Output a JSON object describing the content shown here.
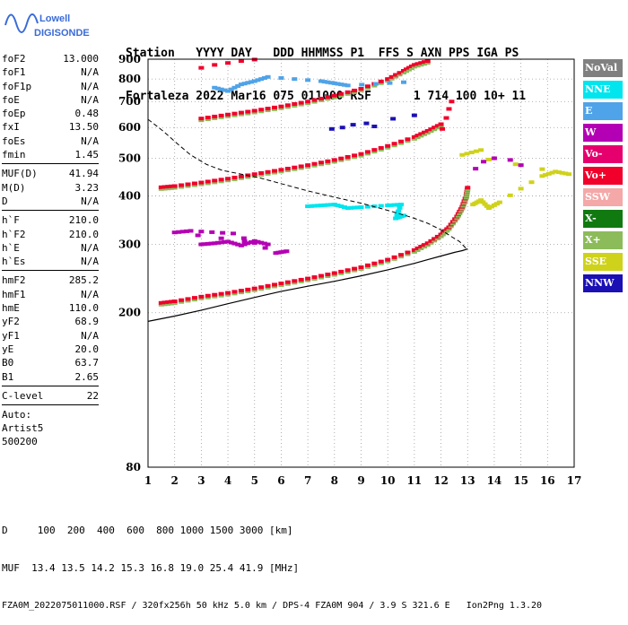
{
  "logo": {
    "line1": "Lowell",
    "line2": "DIGISONDE",
    "icon": "digisonde-waveform-logo"
  },
  "header": {
    "columns": "Station   YYYY DAY   DDD HHMMSS P1  FFS S AXN PPS IGA PS",
    "values": "Fortaleza 2022 Mar16 075 011000 RSF      1 714 100 10+ 11"
  },
  "params": {
    "group1": [
      {
        "name": "foF2",
        "value": "13.000"
      },
      {
        "name": "foF1",
        "value": "N/A"
      },
      {
        "name": "foF1p",
        "value": "N/A"
      },
      {
        "name": "foE",
        "value": "N/A"
      },
      {
        "name": "foEp",
        "value": "0.48"
      },
      {
        "name": "fxI",
        "value": "13.50"
      },
      {
        "name": "foEs",
        "value": "N/A"
      },
      {
        "name": "fmin",
        "value": "1.45"
      }
    ],
    "group2": [
      {
        "name": "MUF(D)",
        "value": "41.94"
      },
      {
        "name": "M(D)",
        "value": "3.23"
      },
      {
        "name": "D",
        "value": "N/A"
      }
    ],
    "group3": [
      {
        "name": "h`F",
        "value": "210.0"
      },
      {
        "name": "h`F2",
        "value": "210.0"
      },
      {
        "name": "h`E",
        "value": "N/A"
      },
      {
        "name": "h`Es",
        "value": "N/A"
      }
    ],
    "group4": [
      {
        "name": "hmF2",
        "value": "285.2"
      },
      {
        "name": "hmF1",
        "value": "N/A"
      },
      {
        "name": "hmE",
        "value": "110.0"
      },
      {
        "name": "yF2",
        "value": "68.9"
      },
      {
        "name": "yF1",
        "value": "N/A"
      },
      {
        "name": "yE",
        "value": "20.0"
      },
      {
        "name": "B0",
        "value": "63.7"
      },
      {
        "name": "B1",
        "value": "2.65"
      }
    ],
    "group5": [
      {
        "name": "C-level",
        "value": "22"
      }
    ],
    "auto": [
      "Auto:",
      "Artist5",
      "500200"
    ]
  },
  "legend": [
    {
      "label": "NoVal",
      "color": "#808080"
    },
    {
      "label": "NNE",
      "color": "#00e5ee"
    },
    {
      "label": "E",
      "color": "#4fa3e8"
    },
    {
      "label": "W",
      "color": "#b400b4"
    },
    {
      "label": "Vo-",
      "color": "#e6006e"
    },
    {
      "label": "Vo+",
      "color": "#f0002a"
    },
    {
      "label": "SSW",
      "color": "#f4a8a8"
    },
    {
      "label": "X-",
      "color": "#107a10"
    },
    {
      "label": "X+",
      "color": "#8cbb5a"
    },
    {
      "label": "SSE",
      "color": "#cfd21a"
    },
    {
      "label": "NNW",
      "color": "#1a10b4"
    }
  ],
  "footer": {
    "line1": "D     100  200  400  600  800 1000 1500 3000 [km]",
    "line2": "MUF  13.4 13.5 14.2 15.3 16.8 19.0 25.4 41.9 [MHz]",
    "line3": "FZA0M_2022075011000.RSF / 320fx256h 50 kHz 5.0 km / DPS-4 FZA0M 904 / 3.9 S 321.6 E   Ion2Png 1.3.20"
  },
  "chart_data": {
    "type": "scatter",
    "title": "",
    "xlabel": "",
    "ylabel": "",
    "xlim": [
      1,
      17
    ],
    "ylim": [
      80,
      900
    ],
    "ylog": true,
    "xticks": [
      1,
      2,
      3,
      4,
      5,
      6,
      7,
      8,
      9,
      10,
      11,
      12,
      13,
      14,
      15,
      16,
      17
    ],
    "yticks": [
      80,
      200,
      300,
      400,
      500,
      600,
      700,
      800,
      900
    ],
    "grid": true,
    "grid_style": "dotted",
    "legend_placement": "right",
    "traces": [
      {
        "name": "",
        "color": "#f0002a",
        "points": [
          [
            1.5,
            212
          ],
          [
            2,
            214
          ],
          [
            3,
            220
          ],
          [
            4,
            225
          ],
          [
            5,
            231
          ],
          [
            6,
            238
          ],
          [
            7,
            245
          ],
          [
            8,
            253
          ],
          [
            9,
            262
          ],
          [
            10,
            274
          ],
          [
            11,
            290
          ],
          [
            11.5,
            302
          ],
          [
            12,
            318
          ],
          [
            12.3,
            332
          ],
          [
            12.6,
            354
          ],
          [
            12.8,
            375
          ],
          [
            12.95,
            400
          ],
          [
            13,
            420
          ]
        ]
      },
      {
        "name": "",
        "color": "#f0002a",
        "points": [
          [
            1.5,
            421
          ],
          [
            2,
            424
          ],
          [
            3,
            433
          ],
          [
            4,
            443
          ],
          [
            5,
            455
          ],
          [
            6,
            467
          ],
          [
            7,
            480
          ],
          [
            8,
            495
          ],
          [
            9,
            513
          ],
          [
            10,
            538
          ],
          [
            11,
            567
          ],
          [
            11.5,
            588
          ],
          [
            12,
            612
          ]
        ]
      },
      {
        "name": "",
        "color": "#f0002a",
        "points": [
          [
            3,
            633
          ],
          [
            4,
            648
          ],
          [
            5,
            663
          ],
          [
            6,
            680
          ],
          [
            7,
            700
          ],
          [
            8,
            725
          ],
          [
            9,
            755
          ],
          [
            10,
            800
          ],
          [
            10.6,
            840
          ],
          [
            11,
            870
          ],
          [
            11.5,
            890
          ]
        ]
      },
      {
        "name": "",
        "color": "#f0002a",
        "points": [
          [
            3,
            855
          ],
          [
            3.5,
            870
          ],
          [
            4,
            880
          ],
          [
            4.5,
            890
          ],
          [
            5,
            898
          ]
        ]
      },
      {
        "name": "",
        "color": "#f0002a",
        "points": [
          [
            12.05,
            595
          ],
          [
            12.2,
            635
          ],
          [
            12.3,
            670
          ],
          [
            12.4,
            700
          ]
        ]
      },
      {
        "name": "",
        "color": "#1a10b4",
        "points": [
          [
            7.9,
            595
          ],
          [
            8.3,
            600
          ],
          [
            8.7,
            610
          ],
          [
            9.2,
            615
          ],
          [
            9.5,
            604
          ],
          [
            10.2,
            632
          ],
          [
            11,
            645
          ]
        ]
      },
      {
        "name": "",
        "color": "#b400b4",
        "points": [
          [
            3,
            300
          ],
          [
            3.5,
            302
          ],
          [
            4,
            305
          ],
          [
            4.5,
            298
          ],
          [
            5,
            306
          ],
          [
            5.5,
            300
          ],
          [
            2,
            322
          ],
          [
            2.6,
            325
          ],
          [
            4.2,
            320
          ],
          [
            5.8,
            285
          ],
          [
            6.2,
            288
          ]
        ]
      },
      {
        "name": "",
        "color": "#00e5ee",
        "points": [
          [
            7,
            376
          ],
          [
            7.5,
            378
          ],
          [
            8,
            380
          ],
          [
            8.5,
            372
          ],
          [
            9,
            374
          ],
          [
            10,
            378
          ],
          [
            10.5,
            380
          ],
          [
            10.3,
            350
          ],
          [
            10.6,
            356
          ]
        ]
      },
      {
        "name": "",
        "color": "#cfd21a",
        "points": [
          [
            13.2,
            380
          ],
          [
            13.5,
            390
          ],
          [
            13.8,
            372
          ],
          [
            14.2,
            385
          ],
          [
            15.8,
            450
          ],
          [
            16.3,
            462
          ],
          [
            16.8,
            455
          ],
          [
            12.8,
            510
          ],
          [
            13.5,
            525
          ]
        ]
      },
      {
        "name": "",
        "color": "#4fa3e8",
        "points": [
          [
            3.5,
            760
          ],
          [
            4,
            745
          ],
          [
            4.5,
            775
          ],
          [
            5,
            790
          ],
          [
            5.5,
            810
          ],
          [
            7.5,
            790
          ],
          [
            8,
            780
          ],
          [
            8.5,
            770
          ],
          [
            10.6,
            785
          ]
        ]
      },
      {
        "name": "",
        "color": "#b400b4",
        "points": [
          [
            13.6,
            490
          ],
          [
            14,
            500
          ],
          [
            13.3,
            470
          ],
          [
            14.6,
            495
          ],
          [
            15,
            480
          ]
        ]
      }
    ],
    "profile_curve": [
      [
        1.0,
        190
      ],
      [
        2,
        196
      ],
      [
        3,
        203
      ],
      [
        4,
        211
      ],
      [
        5,
        219
      ],
      [
        6,
        227
      ],
      [
        7,
        234
      ],
      [
        8,
        241
      ],
      [
        9,
        249
      ],
      [
        10,
        258
      ],
      [
        11,
        268
      ],
      [
        11.5,
        274
      ],
      [
        12,
        280
      ],
      [
        12.5,
        286
      ],
      [
        12.8,
        289
      ],
      [
        13.0,
        292
      ]
    ],
    "mufd_curve": [
      [
        1.0,
        630
      ],
      [
        1.2,
        615
      ],
      [
        1.6,
        585
      ],
      [
        2.1,
        545
      ],
      [
        2.6,
        510
      ],
      [
        3.2,
        482
      ],
      [
        3.8,
        465
      ],
      [
        4.5,
        455
      ],
      [
        5.2,
        445
      ],
      [
        6,
        430
      ],
      [
        7,
        412
      ],
      [
        8,
        397
      ],
      [
        9,
        383
      ],
      [
        10,
        367
      ],
      [
        10.5,
        359
      ],
      [
        11,
        350
      ],
      [
        11.5,
        340
      ],
      [
        12,
        327
      ],
      [
        12.4,
        314
      ],
      [
        12.7,
        305
      ],
      [
        13.0,
        290
      ]
    ]
  }
}
